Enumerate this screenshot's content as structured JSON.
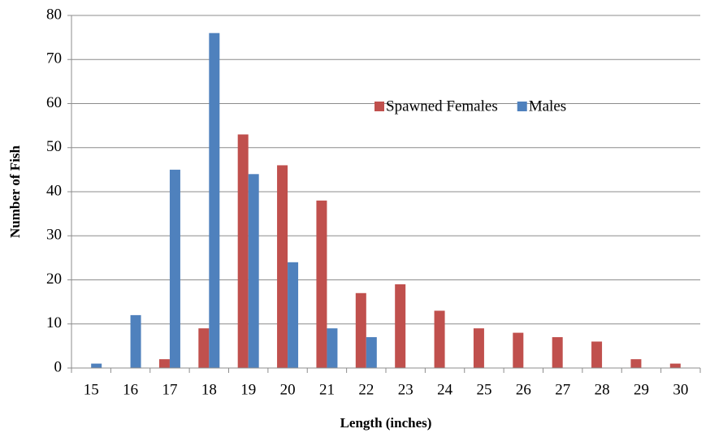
{
  "chart_data": {
    "type": "bar",
    "x_label": "Length (inches)",
    "y_label": "Number of Fish",
    "categories": [
      "15",
      "16",
      "17",
      "18",
      "19",
      "20",
      "21",
      "22",
      "23",
      "24",
      "25",
      "26",
      "27",
      "28",
      "29",
      "30"
    ],
    "series": [
      {
        "name": "Spawned Females",
        "color": "#c0504d",
        "values": [
          0,
          0,
          2,
          9,
          53,
          46,
          38,
          17,
          19,
          13,
          9,
          8,
          7,
          6,
          2,
          1
        ]
      },
      {
        "name": "Males",
        "color": "#4f81bd",
        "values": [
          1,
          12,
          45,
          76,
          44,
          24,
          9,
          7,
          0,
          0,
          0,
          0,
          0,
          0,
          0,
          0
        ]
      }
    ],
    "ylim": [
      0,
      80
    ],
    "yticks": [
      0,
      10,
      20,
      30,
      40,
      50,
      60,
      70,
      80
    ],
    "grid": true,
    "legend": "top-right"
  }
}
